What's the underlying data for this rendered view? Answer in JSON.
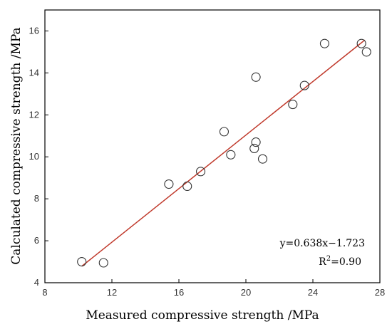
{
  "chart_data": {
    "type": "scatter",
    "xlabel": "Measured compressive strength /MPa",
    "ylabel": "Calculated compressive strength /MPa",
    "xlim": [
      8,
      28
    ],
    "ylim": [
      4,
      17
    ],
    "x_ticks": [
      8,
      12,
      16,
      20,
      24,
      28
    ],
    "y_ticks": [
      4,
      6,
      8,
      10,
      12,
      14,
      16
    ],
    "grid": false,
    "points": [
      {
        "x": 10.2,
        "y": 5.0
      },
      {
        "x": 11.5,
        "y": 4.95
      },
      {
        "x": 15.4,
        "y": 8.7
      },
      {
        "x": 16.5,
        "y": 8.6
      },
      {
        "x": 17.3,
        "y": 9.3
      },
      {
        "x": 18.7,
        "y": 11.2
      },
      {
        "x": 19.1,
        "y": 10.1
      },
      {
        "x": 20.5,
        "y": 10.4
      },
      {
        "x": 20.6,
        "y": 10.7
      },
      {
        "x": 20.6,
        "y": 13.8
      },
      {
        "x": 21.0,
        "y": 9.9
      },
      {
        "x": 22.8,
        "y": 12.5
      },
      {
        "x": 23.5,
        "y": 13.4
      },
      {
        "x": 24.7,
        "y": 15.4
      },
      {
        "x": 26.9,
        "y": 15.4
      },
      {
        "x": 27.2,
        "y": 15.0
      }
    ],
    "fit_line": {
      "slope": 0.638,
      "intercept": -1.723,
      "x_range": [
        10.2,
        27.1
      ],
      "color": "#c0392b"
    },
    "annotations": {
      "equation": "y=0.638x−1.723",
      "r2_prefix": "R",
      "r2_sup": "2",
      "r2_value": "=0.90"
    },
    "marker_style": "open-circle",
    "colors": {
      "axis": "#000000",
      "marker": "#333333",
      "fit": "#c0392b"
    }
  }
}
